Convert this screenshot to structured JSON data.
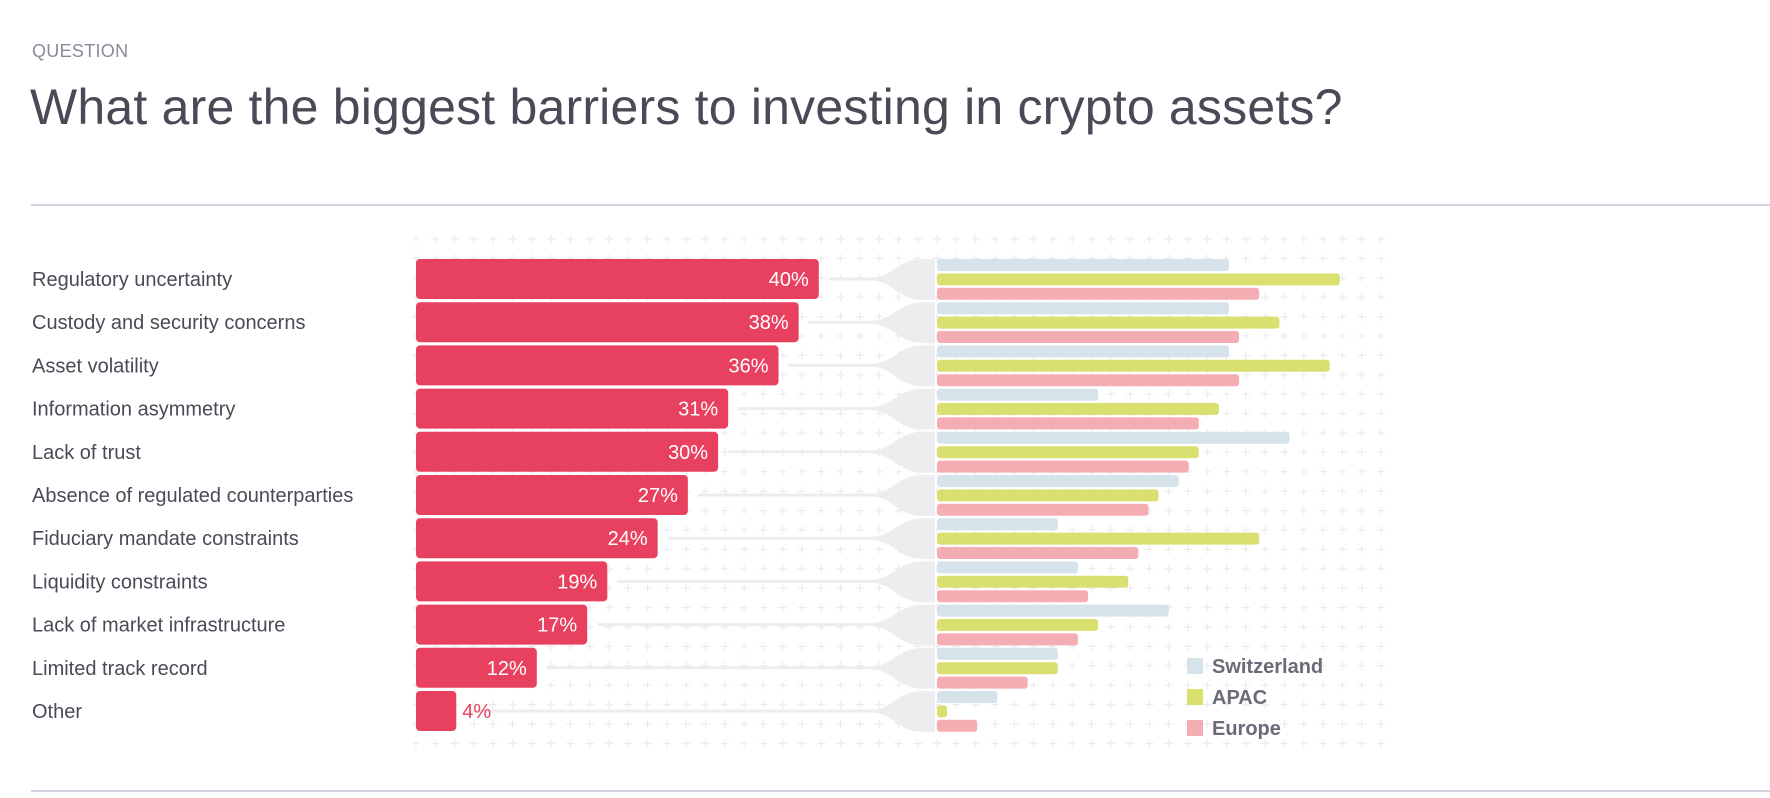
{
  "header": {
    "eyebrow": "QUESTION",
    "title": "What are the biggest barriers to investing in crypto assets?"
  },
  "chart_data": {
    "type": "bar",
    "orientation": "horizontal",
    "title": "What are the biggest barriers to investing in crypto assets?",
    "unit": "%",
    "categories": [
      "Regulatory uncertainty",
      "Custody and security concerns",
      "Asset volatility",
      "Information asymmetry",
      "Lack of trust",
      "Absence of regulated counterparties",
      "Fiduciary mandate constraints",
      "Liquidity constraints",
      "Lack of market infrastructure",
      "Limited track record",
      "Other"
    ],
    "overall": {
      "values": [
        40,
        38,
        36,
        31,
        30,
        27,
        24,
        19,
        17,
        12,
        4
      ],
      "labels": [
        "40%",
        "38%",
        "36%",
        "31%",
        "30%",
        "27%",
        "24%",
        "19%",
        "17%",
        "12%",
        "4%"
      ],
      "color": "#e8415f"
    },
    "series": [
      {
        "name": "Switzerland",
        "color": "#d6e3ea",
        "values": [
          29,
          29,
          29,
          16,
          35,
          24,
          12,
          14,
          23,
          12,
          6
        ]
      },
      {
        "name": "APAC",
        "color": "#d9e070",
        "values": [
          40,
          34,
          39,
          28,
          26,
          22,
          32,
          19,
          16,
          12,
          1
        ]
      },
      {
        "name": "Europe",
        "color": "#f5adb4",
        "values": [
          32,
          30,
          30,
          26,
          25,
          21,
          20,
          15,
          14,
          9,
          4
        ]
      }
    ],
    "xlim": [
      0,
      40
    ],
    "grid": true,
    "legend_position": "bottom-right"
  }
}
